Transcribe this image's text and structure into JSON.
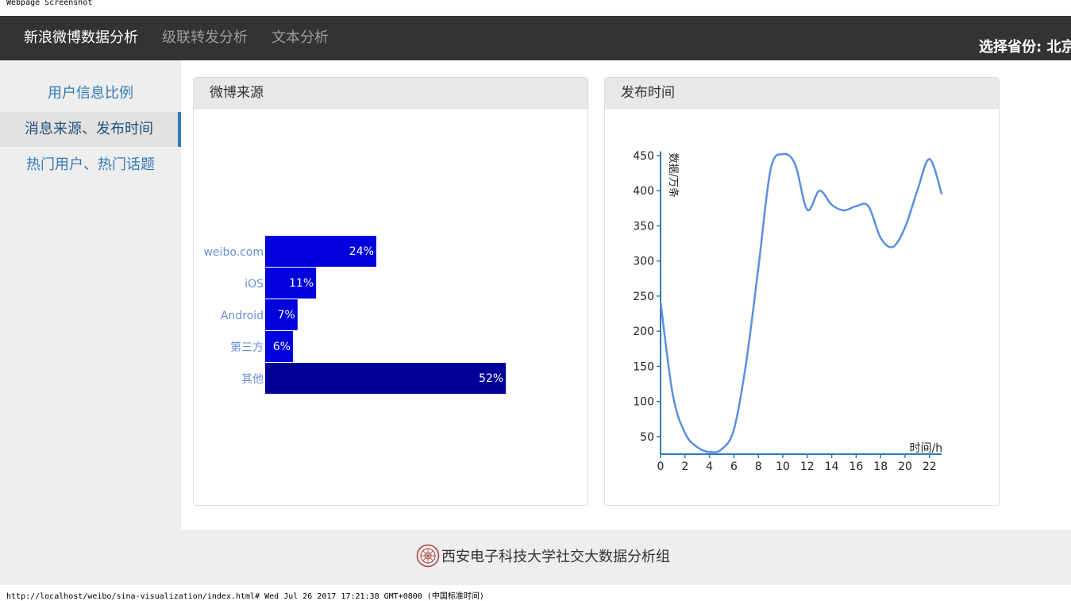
{
  "print": {
    "header": "Webpage Screenshot",
    "footer": "http://localhost/weibo/sina-visualization/index.html# Wed Jul 26 2017 17:21:38 GMT+0800 (中国标准时间)"
  },
  "navbar": {
    "brand": "新浪微博数据分析",
    "links": [
      "级联转发分析",
      "文本分析"
    ],
    "province": "选择省份: 北京"
  },
  "sidebar": {
    "items": [
      "用户信息比例",
      "消息来源、发布时间",
      "热门用户、热门话题"
    ],
    "active": 1
  },
  "panels": {
    "source_title": "微博来源",
    "time_title": "发布时间"
  },
  "footer": {
    "text": "西安电子科技大学社交大数据分析组"
  },
  "colors": {
    "bar_blue": "#0000dd",
    "bar_dark": "#000099",
    "line": "#5b8fe0",
    "axis": "#337ab7",
    "label": "#6b8ed6"
  },
  "chart_data": [
    {
      "type": "bar",
      "orientation": "horizontal",
      "categories": [
        "weibo.com",
        "iOS",
        "Android",
        "第三方",
        "其他"
      ],
      "values": [
        24,
        11,
        7,
        6,
        52
      ],
      "value_labels": [
        "24%",
        "11%",
        "7%",
        "6%",
        "52%"
      ],
      "unit": "%"
    },
    {
      "type": "line",
      "x": [
        0,
        1,
        2,
        3,
        4,
        5,
        6,
        7,
        8,
        9,
        10,
        11,
        12,
        13,
        14,
        15,
        16,
        17,
        18,
        19,
        20,
        21,
        22,
        23
      ],
      "y": [
        242,
        110,
        55,
        35,
        28,
        32,
        60,
        155,
        290,
        430,
        452,
        438,
        373,
        400,
        380,
        372,
        378,
        378,
        333,
        320,
        348,
        400,
        445,
        395
      ],
      "xlabel": "时间/h",
      "ylabel": "数据/万条",
      "xticks": [
        0,
        2,
        4,
        6,
        8,
        10,
        12,
        14,
        16,
        18,
        20,
        22
      ],
      "yticks": [
        50,
        100,
        150,
        200,
        250,
        300,
        350,
        400,
        450
      ],
      "xlim": [
        0,
        23
      ],
      "ylim": [
        25,
        455
      ]
    }
  ]
}
